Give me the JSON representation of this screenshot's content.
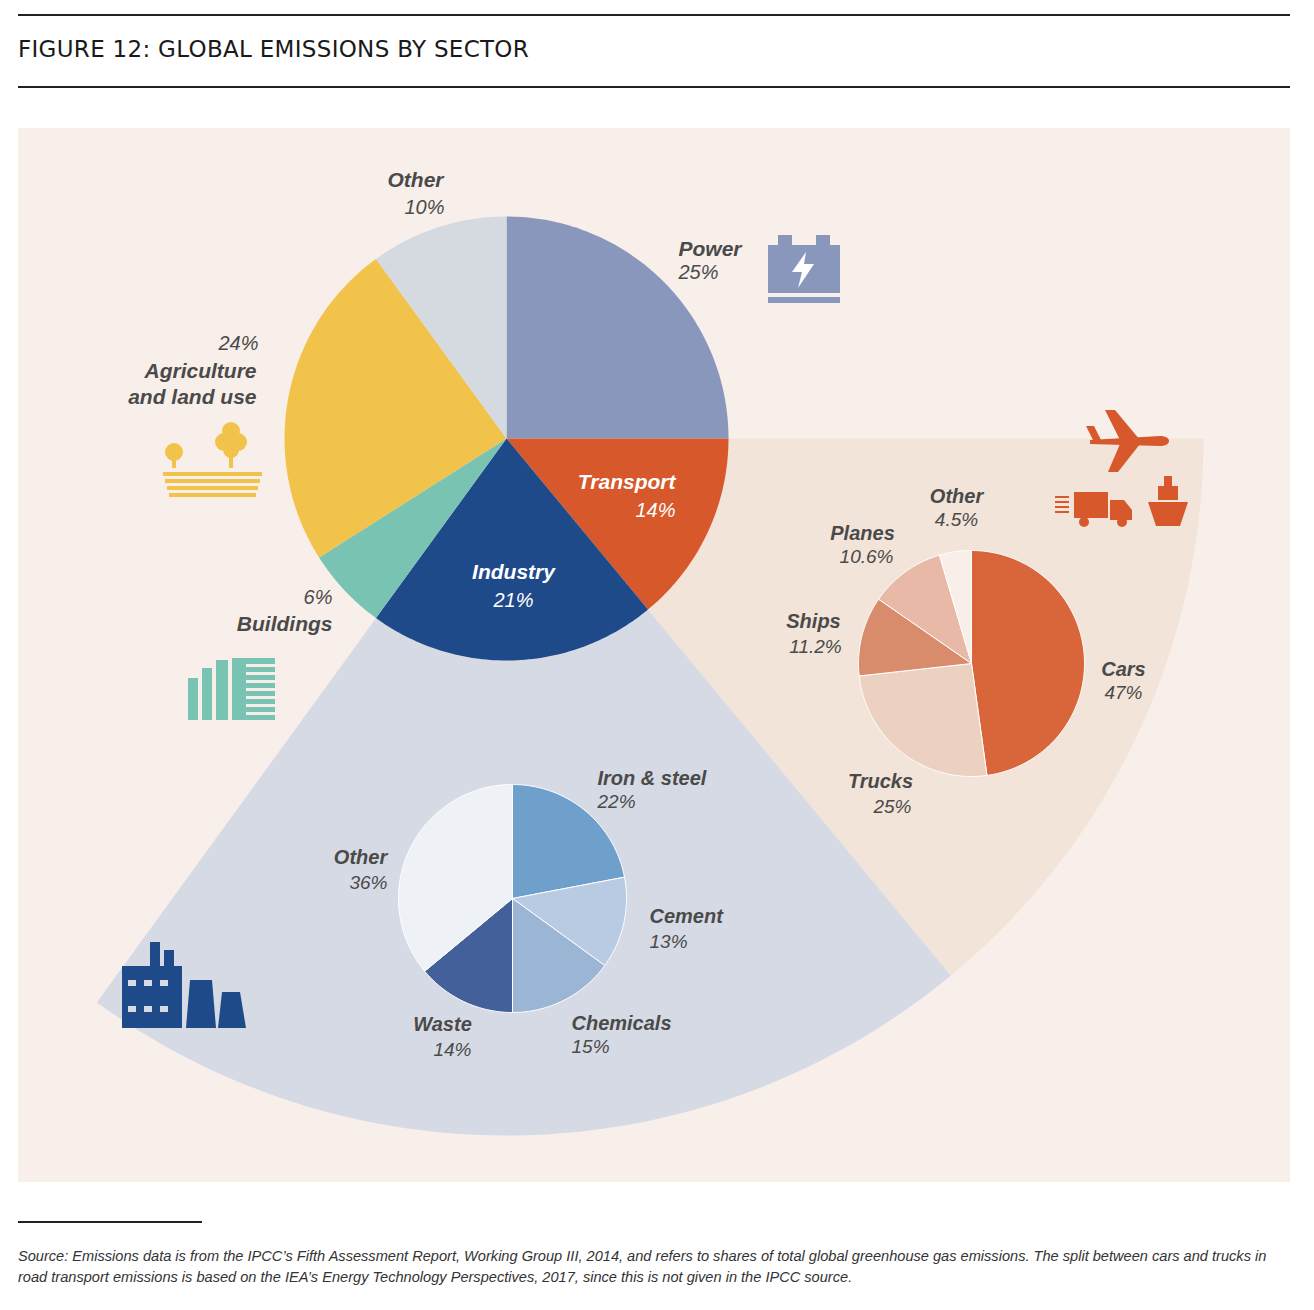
{
  "title": "FIGURE 12: GLOBAL EMISSIONS BY SECTOR",
  "caption": "Source: Emissions data is from the IPCC’s Fifth Assessment Report, Working Group III, 2014, and refers to shares of total global greenhouse gas emissions. The split between cars and trucks in road transport emissions is based on the IEA’s Energy Technology Perspectives, 2017, since this is not given in the IPCC source.",
  "chart_data": [
    {
      "type": "pie",
      "categories": [
        "Power",
        "Transport",
        "Industry",
        "Buildings",
        "Agriculture\nand land use",
        "Other"
      ],
      "values": [
        25,
        14,
        21,
        6,
        24,
        10
      ],
      "value_labels": [
        "25%",
        "14%",
        "21%",
        "6%",
        "24%",
        "10%"
      ],
      "colors": [
        "#8a97bc",
        "#d6582b",
        "#1f4a8a",
        "#79c3b2",
        "#f2c34a",
        "#d5d9e0"
      ],
      "data_labels": true
    },
    {
      "type": "pie",
      "categories": [
        "Cars",
        "Trucks",
        "Ships",
        "Planes",
        "Other"
      ],
      "values": [
        47,
        25,
        11.2,
        10.6,
        4.5
      ],
      "value_labels": [
        "47%",
        "25%",
        "11.2%",
        "10.6%",
        "4.5%"
      ],
      "colors": [
        "#d9663a",
        "#ecd0c0",
        "#d98c6c",
        "#e8b9a6",
        "#f8efe8"
      ],
      "data_labels": true
    },
    {
      "type": "pie",
      "categories": [
        "Iron & steel",
        "Cement",
        "Chemicals",
        "Waste",
        "Other"
      ],
      "values": [
        22,
        13,
        15,
        14,
        36
      ],
      "value_labels": [
        "22%",
        "13%",
        "15%",
        "14%",
        "36%"
      ],
      "colors": [
        "#6fa0cc",
        "#b8cbe2",
        "#9bb5d4",
        "#43609a",
        "#eef1f5"
      ],
      "data_labels": true
    }
  ]
}
